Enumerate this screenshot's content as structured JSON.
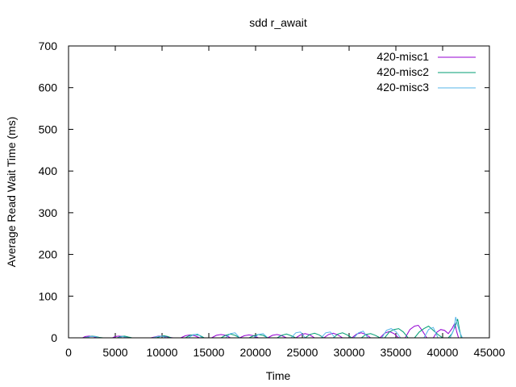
{
  "chart_data": {
    "type": "line",
    "title": "sdd r_await",
    "xlabel": "Time",
    "ylabel": "Average Read Wait Time (ms)",
    "xlim": [
      0,
      45000
    ],
    "ylim": [
      0,
      700
    ],
    "xticks": [
      0,
      5000,
      10000,
      15000,
      20000,
      25000,
      30000,
      35000,
      40000,
      45000
    ],
    "yticks": [
      0,
      100,
      200,
      300,
      400,
      500,
      600,
      700
    ],
    "grid": false,
    "legend_position": "top-right",
    "series": [
      {
        "name": "420-misc1",
        "color": "#9400d3",
        "x": [
          1500,
          1800,
          2200,
          2600,
          3000,
          3300,
          4700,
          5000,
          5400,
          5800,
          6200,
          6500,
          8800,
          9200,
          9600,
          10000,
          10400,
          10800,
          11200,
          12000,
          12500,
          13000,
          13500,
          14000,
          15300,
          15800,
          16300,
          16800,
          17300,
          18300,
          18800,
          19300,
          19800,
          20300,
          21300,
          21800,
          22300,
          22800,
          23300,
          24300,
          24800,
          25300,
          25800,
          26300,
          27300,
          27800,
          28300,
          28800,
          29300,
          30300,
          30800,
          31300,
          31800,
          32300,
          33300,
          33800,
          34300,
          34800,
          35300,
          36000,
          36500,
          37000,
          37400,
          37800,
          38300,
          39000,
          39400,
          39800,
          40200,
          40600,
          41000,
          41300,
          41500,
          41700
        ],
        "y": [
          0,
          3,
          4,
          3,
          1,
          0,
          0,
          3,
          4,
          3,
          1,
          0,
          0,
          2,
          4,
          4,
          3,
          1,
          0,
          0,
          5,
          7,
          5,
          0,
          0,
          6,
          8,
          6,
          0,
          0,
          5,
          7,
          5,
          0,
          0,
          6,
          8,
          5,
          0,
          0,
          7,
          10,
          7,
          0,
          0,
          8,
          11,
          7,
          0,
          0,
          9,
          12,
          8,
          0,
          0,
          11,
          15,
          10,
          0,
          0,
          20,
          28,
          30,
          18,
          0,
          0,
          14,
          20,
          18,
          10,
          22,
          35,
          15,
          0
        ]
      },
      {
        "name": "420-misc2",
        "color": "#009e73",
        "x": [
          1700,
          2100,
          2500,
          2900,
          3300,
          3700,
          5200,
          5600,
          6000,
          6400,
          6800,
          9400,
          9800,
          10200,
          10600,
          11000,
          12500,
          13000,
          13500,
          14000,
          14500,
          16300,
          16800,
          17300,
          17800,
          18300,
          19300,
          19800,
          20300,
          20800,
          21300,
          22300,
          22800,
          23300,
          23800,
          24300,
          25300,
          25800,
          26300,
          26800,
          27300,
          28300,
          28800,
          29300,
          29800,
          30300,
          31300,
          31800,
          32300,
          32800,
          33300,
          33800,
          34300,
          34800,
          35300,
          35800,
          36300,
          37000,
          37500,
          38000,
          38500,
          39000,
          39500,
          40000,
          40600,
          41000,
          41300,
          41600,
          41800,
          42000
        ],
        "y": [
          0,
          2,
          4,
          3,
          1,
          0,
          0,
          3,
          4,
          2,
          0,
          0,
          3,
          5,
          3,
          0,
          0,
          6,
          8,
          6,
          0,
          0,
          6,
          9,
          6,
          0,
          0,
          5,
          8,
          6,
          0,
          0,
          6,
          9,
          5,
          0,
          0,
          8,
          11,
          7,
          0,
          0,
          9,
          12,
          7,
          0,
          0,
          8,
          10,
          6,
          0,
          0,
          14,
          20,
          22,
          14,
          0,
          0,
          14,
          22,
          28,
          18,
          8,
          0,
          0,
          10,
          25,
          45,
          20,
          0
        ]
      },
      {
        "name": "420-misc3",
        "color": "#56b4e9",
        "x": [
          1800,
          2300,
          2800,
          3300,
          5300,
          5800,
          6300,
          9000,
          9500,
          10000,
          10500,
          12800,
          13300,
          13800,
          14300,
          16800,
          17300,
          17800,
          18300,
          19800,
          20300,
          20800,
          21300,
          23800,
          24300,
          24800,
          25300,
          27000,
          27500,
          28000,
          28500,
          30500,
          31000,
          31500,
          32000,
          33500,
          34000,
          34500,
          35000,
          35500,
          38000,
          38500,
          39000,
          39500,
          40800,
          41200,
          41400,
          41600,
          41800,
          42100
        ],
        "y": [
          0,
          3,
          3,
          0,
          0,
          3,
          0,
          0,
          3,
          4,
          0,
          0,
          7,
          9,
          0,
          0,
          10,
          12,
          0,
          0,
          8,
          10,
          0,
          0,
          12,
          14,
          0,
          0,
          12,
          14,
          0,
          0,
          12,
          16,
          0,
          0,
          18,
          22,
          15,
          0,
          0,
          20,
          25,
          0,
          0,
          20,
          50,
          30,
          15,
          0
        ]
      }
    ]
  }
}
